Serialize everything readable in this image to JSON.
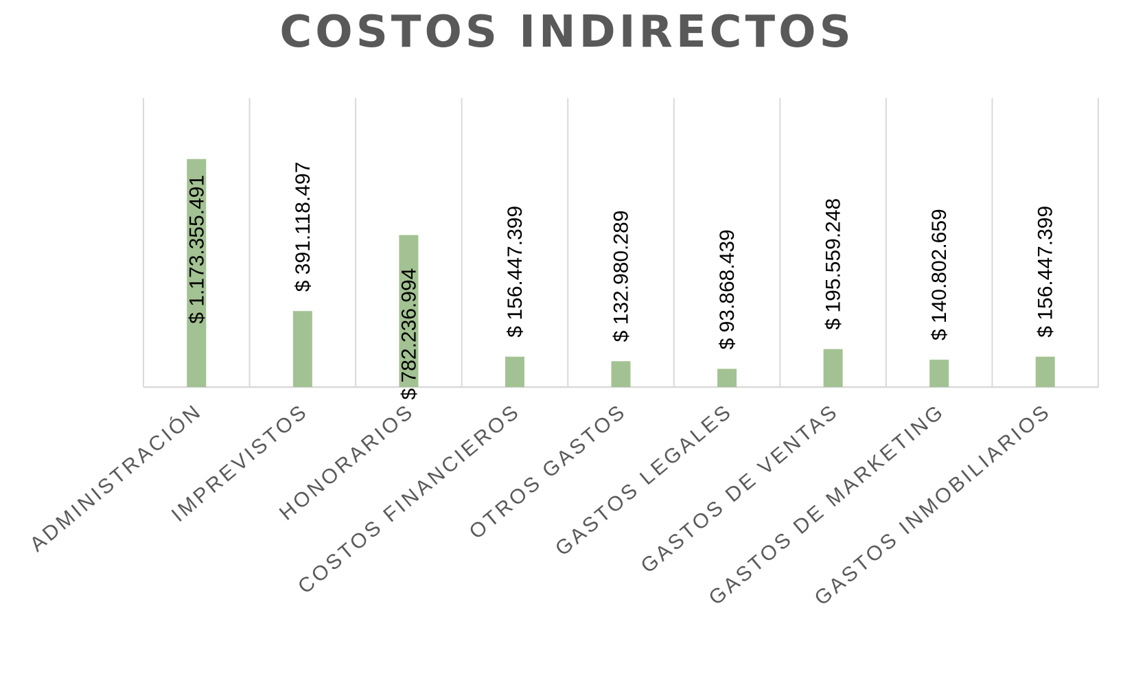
{
  "chart_data": {
    "type": "bar",
    "title": "COSTOS INDIRECTOS",
    "categories": [
      "ADMINISTRACIÓN",
      "IMPREVISTOS",
      "HONORARIOS",
      "COSTOS FINANCIEROS",
      "OTROS GASTOS",
      "GASTOS LEGALES",
      "GASTOS DE VENTAS",
      "GASTOS DE MARKETING",
      "GASTOS INMOBILIARIOS"
    ],
    "values": [
      1173355491,
      391118497,
      782236994,
      156447399,
      132980289,
      93868439,
      195559248,
      140802659,
      156447399
    ],
    "data_labels": [
      "$ 1.173.355.491",
      "$ 391.118.497",
      "$ 782.236.994",
      "$ 156.447.399",
      "$ 132.980.289",
      "$ 93.868.439",
      "$ 195.559.248",
      "$ 140.802.659",
      "$ 156.447.399"
    ],
    "bar_color": "#a3c293",
    "ylim": [
      0,
      1400000000
    ],
    "grid": "vertical",
    "legend": "none"
  }
}
